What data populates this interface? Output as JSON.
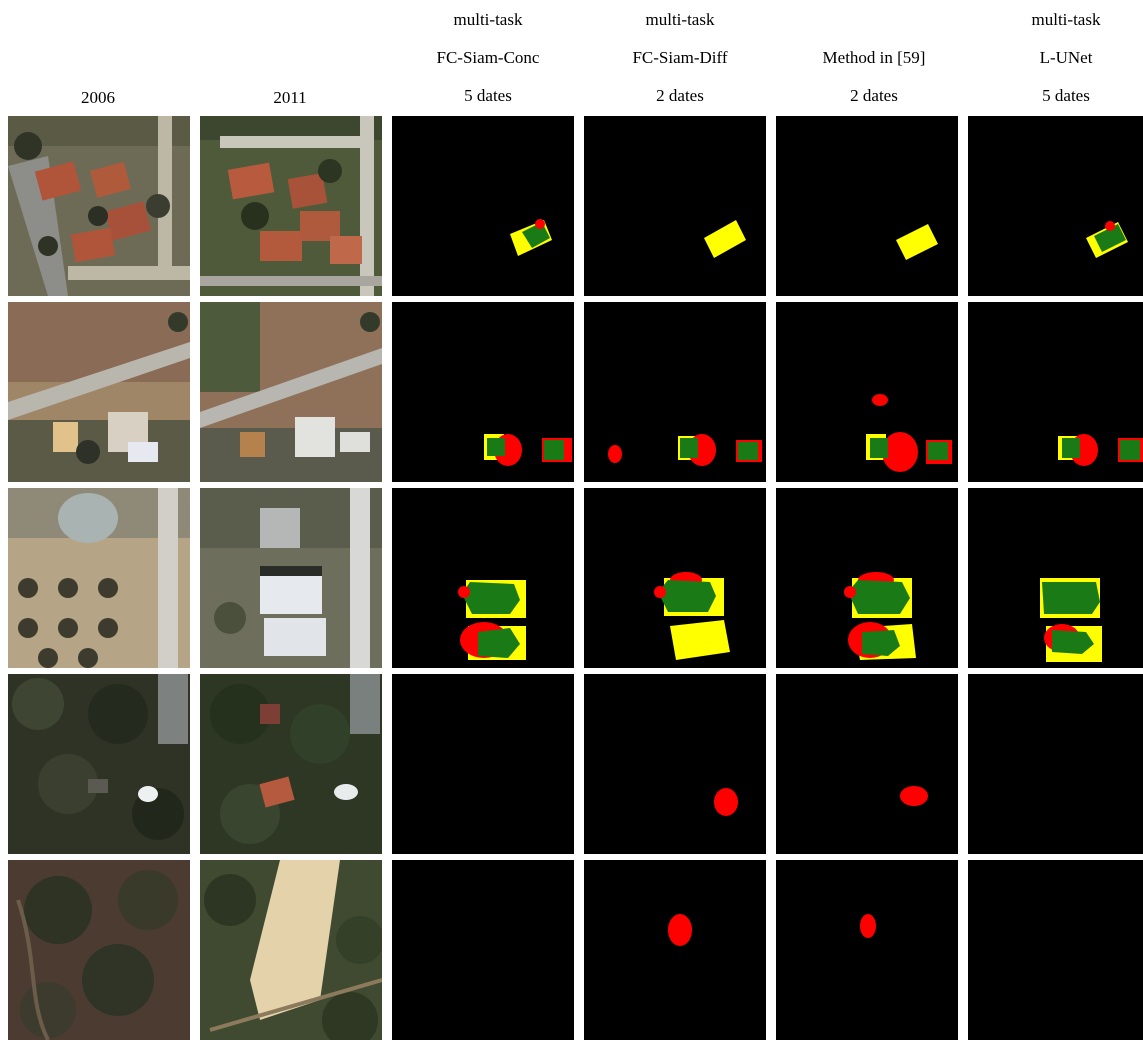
{
  "headers": [
    {
      "lines": [
        "",
        "",
        "2006"
      ]
    },
    {
      "lines": [
        "",
        "",
        "2011"
      ]
    },
    {
      "lines": [
        "multi-task",
        "FC-Siam-Conc",
        "5 dates"
      ]
    },
    {
      "lines": [
        "multi-task",
        "FC-Siam-Diff",
        "2 dates"
      ]
    },
    {
      "lines": [
        "",
        "Method in [59]",
        "2 dates"
      ]
    },
    {
      "lines": [
        "multi-task",
        "L-UNet",
        "5 dates"
      ]
    }
  ],
  "colors": {
    "background": "#000000",
    "true_positive": "#1a7a16",
    "false_positive": "#ff0000",
    "false_negative": "#ffff00"
  },
  "rows": [
    {
      "row": 1
    },
    {
      "row": 2
    },
    {
      "row": 3
    },
    {
      "row": 4
    },
    {
      "row": 5
    }
  ]
}
